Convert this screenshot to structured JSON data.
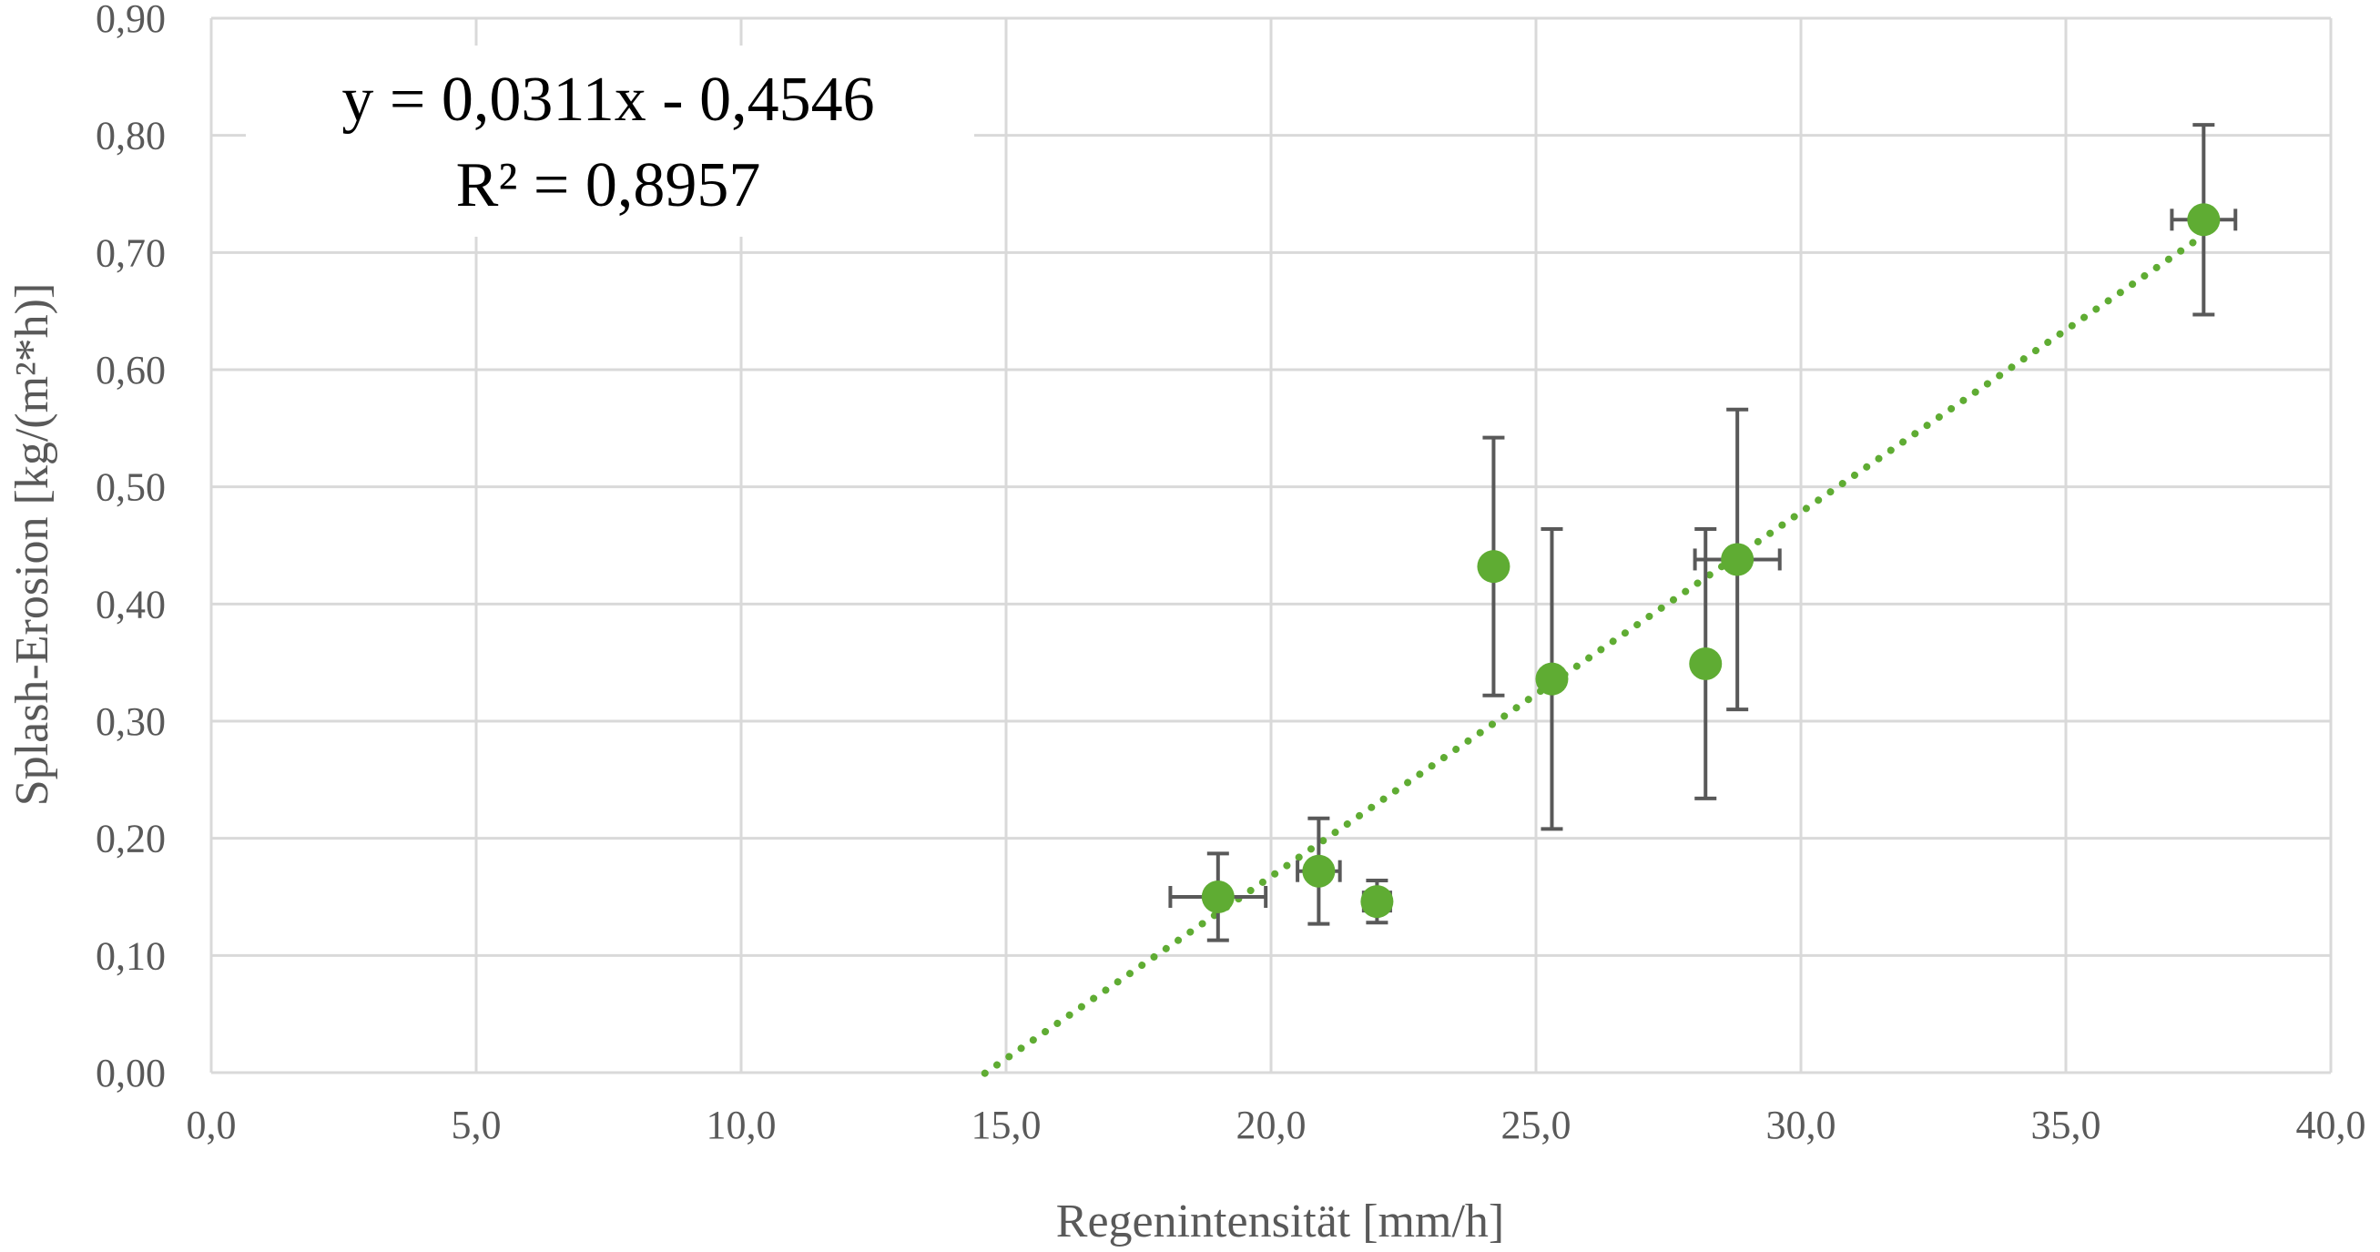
{
  "chart_data": {
    "type": "scatter",
    "xlabel": "Regenintensität [mm/h]",
    "ylabel": "Splash-Erosion [kg/(m²*h)]",
    "xlim": [
      0,
      40
    ],
    "ylim": [
      0,
      0.9
    ],
    "x_ticks": [
      0,
      5,
      10,
      15,
      20,
      25,
      30,
      35,
      40
    ],
    "y_ticks": [
      0,
      0.1,
      0.2,
      0.3,
      0.4,
      0.5,
      0.6,
      0.7,
      0.8,
      0.9
    ],
    "x_tick_labels": [
      "0,0",
      "5,0",
      "10,0",
      "15,0",
      "20,0",
      "25,0",
      "30,0",
      "35,0",
      "40,0"
    ],
    "y_tick_labels": [
      "0,00",
      "0,10",
      "0,20",
      "0,30",
      "0,40",
      "0,50",
      "0,60",
      "0,70",
      "0,80",
      "0,90"
    ],
    "grid": true,
    "colors": {
      "points": "#5fac33",
      "trendline": "#5fac33",
      "error_bars": "#595959",
      "grid": "#d9d9d9"
    },
    "points": [
      {
        "x": 19.0,
        "y": 0.15,
        "y_err": 0.037,
        "x_err": 0.9
      },
      {
        "x": 20.9,
        "y": 0.172,
        "y_err": 0.045,
        "x_err": 0.4
      },
      {
        "x": 22.0,
        "y": 0.146,
        "y_err": 0.018,
        "x_err": 0.25
      },
      {
        "x": 24.2,
        "y": 0.432,
        "y_err": 0.11,
        "x_err": 0
      },
      {
        "x": 25.3,
        "y": 0.336,
        "y_err": 0.128,
        "x_err": 0.2
      },
      {
        "x": 28.2,
        "y": 0.349,
        "y_err": 0.115,
        "x_err": 0
      },
      {
        "x": 28.8,
        "y": 0.438,
        "y_err": 0.128,
        "x_err": 0.8
      },
      {
        "x": 37.6,
        "y": 0.728,
        "y_err": 0.081,
        "x_err": 0.6
      }
    ],
    "trendline": {
      "type": "linear",
      "slope": 0.0311,
      "intercept": -0.4546,
      "style": "dotted",
      "x_range": [
        14.6,
        37.6
      ],
      "equation_label": "y = 0,0311x - 0,4546",
      "r2_label": "R² = 0,8957"
    }
  }
}
